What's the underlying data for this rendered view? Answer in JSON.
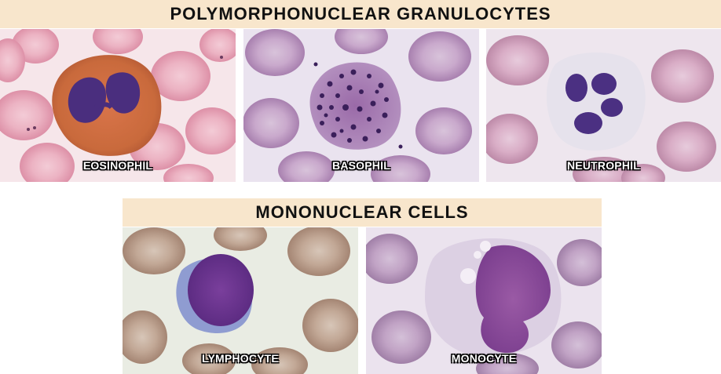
{
  "headers": {
    "top": "POLYMORPHONUCLEAR GRANULOCYTES",
    "bottom": "MONONUCLEAR CELLS"
  },
  "cells": {
    "eosinophil": "EOSINOPHIL",
    "basophil": "BASOPHIL",
    "neutrophil": "NEUTROPHIL",
    "lymphocyte": "LYMPHOCYTE",
    "monocyte": "MONOCYTE"
  },
  "colors": {
    "banner": "#f8e6cc",
    "rbc_pink": "#e9a9bb",
    "rbc_mauve": "#c8a7c8",
    "nucleus": "#4b2a78"
  }
}
